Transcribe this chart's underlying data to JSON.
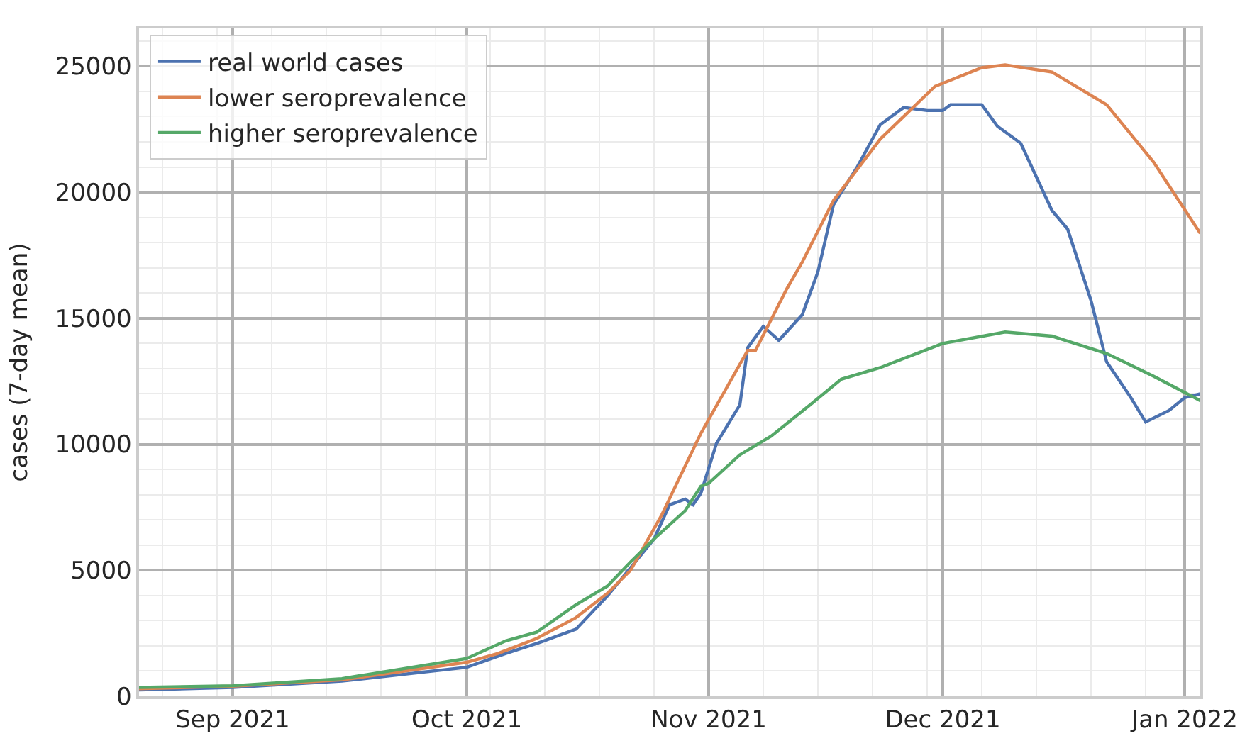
{
  "chart_data": {
    "type": "line",
    "ylabel": "cases (7-day mean)",
    "xlim": [
      "2021-08-20",
      "2022-01-03"
    ],
    "ylim": [
      0,
      26500
    ],
    "xticks": [
      {
        "value": "2021-09-01",
        "label": "Sep 2021"
      },
      {
        "value": "2021-10-01",
        "label": "Oct 2021"
      },
      {
        "value": "2021-11-01",
        "label": "Nov 2021"
      },
      {
        "value": "2021-12-01",
        "label": "Dec 2021"
      },
      {
        "value": "2022-01-01",
        "label": "Jan 2022"
      }
    ],
    "yticks": [
      0,
      5000,
      10000,
      15000,
      20000,
      25000
    ],
    "grid": true,
    "legend": "top left",
    "marker": "none",
    "line_style": "solid",
    "series": [
      {
        "name": "real world cases",
        "color": "#4c72b0",
        "x": [
          "2021-08-20",
          "2021-09-01",
          "2021-09-15",
          "2021-10-01",
          "2021-10-06",
          "2021-10-10",
          "2021-10-15",
          "2021-10-19",
          "2021-10-22",
          "2021-10-25",
          "2021-10-27",
          "2021-10-29",
          "2021-10-30",
          "2021-10-31",
          "2021-11-02",
          "2021-11-05",
          "2021-11-06",
          "2021-11-08",
          "2021-11-10",
          "2021-11-13",
          "2021-11-15",
          "2021-11-17",
          "2021-11-20",
          "2021-11-23",
          "2021-11-26",
          "2021-11-29",
          "2021-12-01",
          "2021-12-02",
          "2021-12-06",
          "2021-12-08",
          "2021-12-11",
          "2021-12-15",
          "2021-12-17",
          "2021-12-20",
          "2021-12-22",
          "2021-12-25",
          "2021-12-27",
          "2021-12-30",
          "2022-01-01",
          "2022-01-03"
        ],
        "values": [
          250,
          350,
          600,
          1150,
          1700,
          2100,
          2660,
          3970,
          5100,
          6240,
          7600,
          7820,
          7600,
          8050,
          10030,
          11560,
          13830,
          14680,
          14120,
          15140,
          16840,
          19500,
          20980,
          22680,
          23360,
          23240,
          23240,
          23470,
          23470,
          22620,
          21940,
          19270,
          18540,
          15700,
          13270,
          11900,
          10880,
          11340,
          11850,
          12000
        ]
      },
      {
        "name": "lower seroprevalence",
        "color": "#dd8452",
        "x": [
          "2021-08-20",
          "2021-09-01",
          "2021-09-15",
          "2021-10-01",
          "2021-10-05",
          "2021-10-10",
          "2021-10-15",
          "2021-10-19",
          "2021-10-22",
          "2021-10-26",
          "2021-10-28",
          "2021-10-31",
          "2021-11-06",
          "2021-11-07",
          "2021-11-11",
          "2021-11-13",
          "2021-11-17",
          "2021-11-23",
          "2021-11-30",
          "2021-12-06",
          "2021-12-09",
          "2021-12-15",
          "2021-12-22",
          "2021-12-28",
          "2022-01-03"
        ],
        "values": [
          300,
          400,
          650,
          1350,
          1700,
          2300,
          3120,
          4080,
          5000,
          7200,
          8500,
          10430,
          13720,
          13720,
          16160,
          17230,
          19670,
          22110,
          24200,
          24940,
          25050,
          24770,
          23470,
          21200,
          18370
        ]
      },
      {
        "name": "higher seroprevalence",
        "color": "#55a868",
        "x": [
          "2021-08-20",
          "2021-09-01",
          "2021-09-15",
          "2021-10-01",
          "2021-10-06",
          "2021-10-10",
          "2021-10-15",
          "2021-10-19",
          "2021-10-22",
          "2021-10-25",
          "2021-10-29",
          "2021-10-31",
          "2021-11-01",
          "2021-11-05",
          "2021-11-09",
          "2021-11-14",
          "2021-11-18",
          "2021-11-23",
          "2021-12-01",
          "2021-12-09",
          "2021-12-15",
          "2021-12-22",
          "2021-12-28",
          "2022-01-03"
        ],
        "values": [
          350,
          420,
          700,
          1500,
          2200,
          2550,
          3630,
          4370,
          5330,
          6240,
          7370,
          8330,
          8450,
          9580,
          10320,
          11560,
          12580,
          13040,
          14000,
          14450,
          14290,
          13600,
          12700,
          11730
        ]
      }
    ]
  }
}
